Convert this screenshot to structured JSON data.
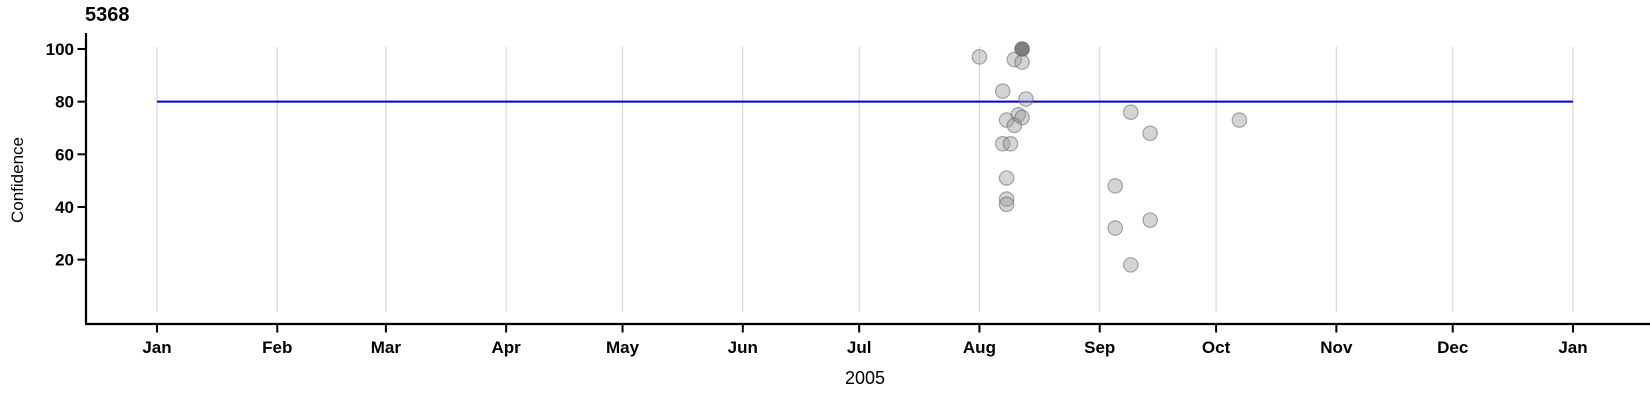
{
  "title": "5368",
  "chart_data": {
    "type": "scatter",
    "title": "5368",
    "xlabel": "2005",
    "ylabel": "Confidence",
    "x_axis": {
      "tick_labels": [
        "Jan",
        "Feb",
        "Mar",
        "Apr",
        "May",
        "Jun",
        "Jul",
        "Aug",
        "Sep",
        "Oct",
        "Nov",
        "Dec",
        "Jan"
      ],
      "tick_day_of_year": [
        0,
        31,
        59,
        90,
        120,
        151,
        181,
        212,
        243,
        273,
        304,
        334,
        365
      ],
      "range_days": [
        0,
        365
      ]
    },
    "y_axis": {
      "ticks": [
        20,
        40,
        60,
        80,
        100
      ],
      "range": [
        0,
        100
      ]
    },
    "grid": "vertical-month-lines",
    "legend": false,
    "reference_line": {
      "y": 80
    },
    "points": [
      {
        "date": "Aug 1",
        "day_of_year": 212,
        "confidence": 97,
        "shade": "normal"
      },
      {
        "date": "Aug 12",
        "day_of_year": 223,
        "confidence": 100,
        "shade": "dark"
      },
      {
        "date": "Aug 10",
        "day_of_year": 221,
        "confidence": 96,
        "shade": "normal"
      },
      {
        "date": "Aug 12",
        "day_of_year": 223,
        "confidence": 95,
        "shade": "normal"
      },
      {
        "date": "Aug 7",
        "day_of_year": 218,
        "confidence": 84,
        "shade": "normal"
      },
      {
        "date": "Aug 13",
        "day_of_year": 224,
        "confidence": 81,
        "shade": "normal"
      },
      {
        "date": "Aug 11",
        "day_of_year": 222,
        "confidence": 75,
        "shade": "normal"
      },
      {
        "date": "Aug 12",
        "day_of_year": 223,
        "confidence": 74,
        "shade": "normal"
      },
      {
        "date": "Aug 8",
        "day_of_year": 219,
        "confidence": 73,
        "shade": "normal"
      },
      {
        "date": "Aug 10",
        "day_of_year": 221,
        "confidence": 71,
        "shade": "normal"
      },
      {
        "date": "Aug 7",
        "day_of_year": 218,
        "confidence": 64,
        "shade": "normal"
      },
      {
        "date": "Aug 9",
        "day_of_year": 220,
        "confidence": 64,
        "shade": "normal"
      },
      {
        "date": "Aug 8",
        "day_of_year": 219,
        "confidence": 51,
        "shade": "normal"
      },
      {
        "date": "Aug 8",
        "day_of_year": 219,
        "confidence": 43,
        "shade": "normal"
      },
      {
        "date": "Aug 8",
        "day_of_year": 219,
        "confidence": 41,
        "shade": "normal"
      },
      {
        "date": "Sep 9",
        "day_of_year": 251,
        "confidence": 76,
        "shade": "normal"
      },
      {
        "date": "Sep 14",
        "day_of_year": 256,
        "confidence": 68,
        "shade": "normal"
      },
      {
        "date": "Sep 5",
        "day_of_year": 247,
        "confidence": 48,
        "shade": "normal"
      },
      {
        "date": "Sep 14",
        "day_of_year": 256,
        "confidence": 35,
        "shade": "normal"
      },
      {
        "date": "Sep 5",
        "day_of_year": 247,
        "confidence": 32,
        "shade": "normal"
      },
      {
        "date": "Sep 9",
        "day_of_year": 251,
        "confidence": 18,
        "shade": "normal"
      },
      {
        "date": "Oct 7",
        "day_of_year": 279,
        "confidence": 73,
        "shade": "normal"
      }
    ]
  },
  "colors": {
    "background": "#ffffff",
    "gridline": "#d8d8d8",
    "axis": "#000000",
    "reference_line": "#0000cd",
    "point_fill": "#999999",
    "point_stroke": "#666666",
    "dark_point_fill": "#606060",
    "text": "#000000"
  }
}
